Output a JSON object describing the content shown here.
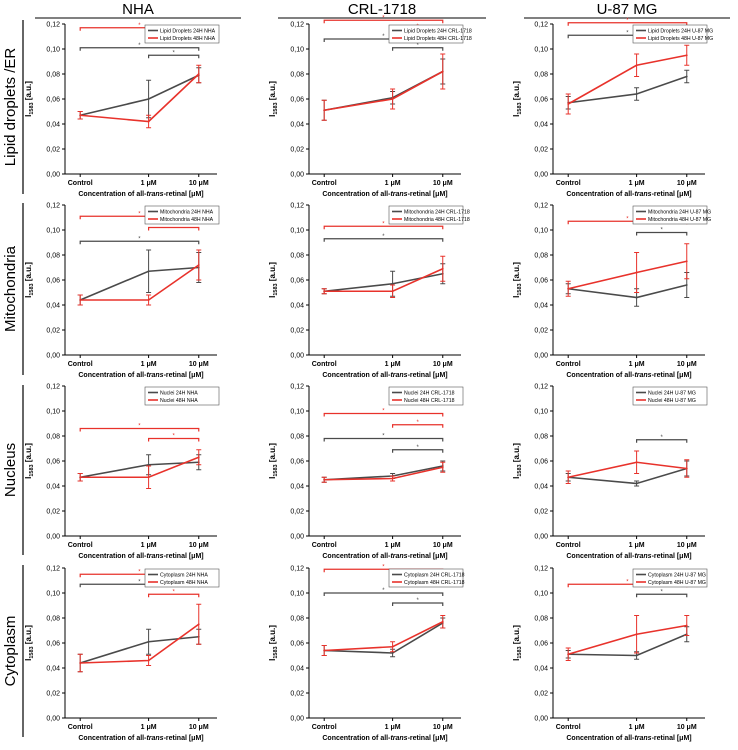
{
  "columns": [
    "NHA",
    "CRL-1718",
    "U-87 MG"
  ],
  "rows": [
    "Lipid droplets /ER",
    "Mitochondria",
    "Nucleus",
    "Cytoplasm"
  ],
  "common": {
    "ylabel_main": "I",
    "ylabel_sub": "1583",
    "ylabel_unit": " [a.u.]",
    "xlabel_pre": "Concentration of all-",
    "xlabel_italic": "trans",
    "xlabel_post": "-retinal [μM]",
    "categories": [
      "Control",
      "1 μM",
      "10 μM"
    ],
    "y_ticks": [
      "0,00",
      "0,02",
      "0,04",
      "0,06",
      "0,08",
      "0,10",
      "0,12"
    ],
    "ylim": [
      0,
      0.12
    ],
    "significance_mark": "*"
  },
  "colors": {
    "h24": "#4a4a4a",
    "h48": "#e8322b"
  },
  "chart_data": [
    {
      "type": "line",
      "row": 0,
      "col": 0,
      "legend": [
        "Lipid Droplets 24H NHA",
        "Lipid Droplets 48H NHA"
      ],
      "series": [
        {
          "name": "24H",
          "values": [
            0.047,
            0.06,
            0.079
          ],
          "err": [
            0.003,
            0.015,
            0.006
          ]
        },
        {
          "name": "48H",
          "values": [
            0.047,
            0.042,
            0.08
          ],
          "err": [
            0.003,
            0.005,
            0.007
          ]
        }
      ],
      "sig": [
        {
          "s": "48H",
          "a": 0,
          "b": 2,
          "y": 0.117
        },
        {
          "s": "48H",
          "a": 1,
          "b": 2,
          "y": 0.111
        },
        {
          "s": "24H",
          "a": 0,
          "b": 2,
          "y": 0.101
        },
        {
          "s": "24H",
          "a": 1,
          "b": 2,
          "y": 0.095
        }
      ]
    },
    {
      "type": "line",
      "row": 0,
      "col": 1,
      "legend": [
        "Lipid Droplets 24H CRL-1718",
        "Lipid Droplets 48H CRL-1718"
      ],
      "series": [
        {
          "name": "24H",
          "values": [
            0.051,
            0.061,
            0.082
          ],
          "err": [
            0.008,
            0.005,
            0.01
          ]
        },
        {
          "name": "48H",
          "values": [
            0.051,
            0.06,
            0.082
          ],
          "err": [
            0.008,
            0.008,
            0.014
          ]
        }
      ],
      "sig": [
        {
          "s": "48H",
          "a": 0,
          "b": 2,
          "y": 0.123
        },
        {
          "s": "48H",
          "a": 1,
          "b": 2,
          "y": 0.116
        },
        {
          "s": "24H",
          "a": 0,
          "b": 2,
          "y": 0.108
        },
        {
          "s": "24H",
          "a": 1,
          "b": 2,
          "y": 0.101
        }
      ]
    },
    {
      "type": "line",
      "row": 0,
      "col": 2,
      "legend": [
        "Lipid Droplets 24H U-87 MG",
        "Lipid Droplets 48H U-87 MG"
      ],
      "series": [
        {
          "name": "24H",
          "values": [
            0.057,
            0.064,
            0.078
          ],
          "err": [
            0.005,
            0.005,
            0.005
          ]
        },
        {
          "name": "48H",
          "values": [
            0.056,
            0.087,
            0.095
          ],
          "err": [
            0.008,
            0.009,
            0.008
          ]
        }
      ],
      "sig": [
        {
          "s": "48H",
          "a": 0,
          "b": 2,
          "y": 0.121
        },
        {
          "s": "24H",
          "a": 0,
          "b": 2,
          "y": 0.111
        }
      ]
    },
    {
      "type": "line",
      "row": 1,
      "col": 0,
      "legend": [
        "Mitochondria 24H NHA",
        "Mitochondria 48H NHA"
      ],
      "series": [
        {
          "name": "24H",
          "values": [
            0.044,
            0.067,
            0.07
          ],
          "err": [
            0.004,
            0.017,
            0.012
          ]
        },
        {
          "name": "48H",
          "values": [
            0.044,
            0.044,
            0.072
          ],
          "err": [
            0.004,
            0.004,
            0.012
          ]
        }
      ],
      "sig": [
        {
          "s": "48H",
          "a": 0,
          "b": 2,
          "y": 0.111
        },
        {
          "s": "48H",
          "a": 1,
          "b": 2,
          "y": 0.102
        },
        {
          "s": "24H",
          "a": 0,
          "b": 2,
          "y": 0.091
        }
      ]
    },
    {
      "type": "line",
      "row": 1,
      "col": 1,
      "legend": [
        "Mitochondria 24H CRL-1718",
        "Mitochondria 48H CRL-1718"
      ],
      "series": [
        {
          "name": "24H",
          "values": [
            0.051,
            0.057,
            0.065
          ],
          "err": [
            0.002,
            0.01,
            0.008
          ]
        },
        {
          "name": "48H",
          "values": [
            0.051,
            0.051,
            0.069
          ],
          "err": [
            0.002,
            0.005,
            0.01
          ]
        }
      ],
      "sig": [
        {
          "s": "48H",
          "a": 0,
          "b": 2,
          "y": 0.103
        },
        {
          "s": "24H",
          "a": 0,
          "b": 2,
          "y": 0.093
        }
      ]
    },
    {
      "type": "line",
      "row": 1,
      "col": 2,
      "legend": [
        "Mitochondria 24H U-87 MG",
        "Mitochondria 48H U-87 MG"
      ],
      "series": [
        {
          "name": "24H",
          "values": [
            0.053,
            0.046,
            0.056
          ],
          "err": [
            0.004,
            0.007,
            0.01
          ]
        },
        {
          "name": "48H",
          "values": [
            0.053,
            0.066,
            0.075
          ],
          "err": [
            0.006,
            0.016,
            0.014
          ]
        }
      ],
      "sig": [
        {
          "s": "48H",
          "a": 0,
          "b": 2,
          "y": 0.107
        },
        {
          "s": "24H",
          "a": 1,
          "b": 2,
          "y": 0.098
        }
      ]
    },
    {
      "type": "line",
      "row": 2,
      "col": 0,
      "legend": [
        "Nuclei 24H NHA",
        "Nuclei 48H NHA"
      ],
      "series": [
        {
          "name": "24H",
          "values": [
            0.047,
            0.057,
            0.059
          ],
          "err": [
            0.003,
            0.008,
            0.006
          ]
        },
        {
          "name": "48H",
          "values": [
            0.047,
            0.047,
            0.063
          ],
          "err": [
            0.003,
            0.009,
            0.006
          ]
        }
      ],
      "sig": [
        {
          "s": "48H",
          "a": 0,
          "b": 2,
          "y": 0.086
        },
        {
          "s": "48H",
          "a": 1,
          "b": 2,
          "y": 0.078
        }
      ]
    },
    {
      "type": "line",
      "row": 2,
      "col": 1,
      "legend": [
        "Nuclei 24H CRL-1718",
        "Nuclei 48H CRL-1718"
      ],
      "series": [
        {
          "name": "24H",
          "values": [
            0.045,
            0.048,
            0.056
          ],
          "err": [
            0.002,
            0.002,
            0.004
          ]
        },
        {
          "name": "48H",
          "values": [
            0.045,
            0.046,
            0.055
          ],
          "err": [
            0.002,
            0.002,
            0.004
          ]
        }
      ],
      "sig": [
        {
          "s": "48H",
          "a": 0,
          "b": 2,
          "y": 0.098
        },
        {
          "s": "48H",
          "a": 1,
          "b": 2,
          "y": 0.089
        },
        {
          "s": "24H",
          "a": 0,
          "b": 2,
          "y": 0.078
        },
        {
          "s": "24H",
          "a": 1,
          "b": 2,
          "y": 0.069
        }
      ]
    },
    {
      "type": "line",
      "row": 2,
      "col": 2,
      "legend": [
        "Nuclei 24H U-87 MG",
        "Nuclei 48H U-87 MG"
      ],
      "series": [
        {
          "name": "24H",
          "values": [
            0.047,
            0.042,
            0.054
          ],
          "err": [
            0.003,
            0.002,
            0.006
          ]
        },
        {
          "name": "48H",
          "values": [
            0.047,
            0.059,
            0.054
          ],
          "err": [
            0.005,
            0.009,
            0.007
          ]
        }
      ],
      "sig": [
        {
          "s": "24H",
          "a": 1,
          "b": 2,
          "y": 0.077
        }
      ]
    },
    {
      "type": "line",
      "row": 3,
      "col": 0,
      "legend": [
        "Cytoplasm 24H NHA",
        "Cytoplasm 48H NHA"
      ],
      "series": [
        {
          "name": "24H",
          "values": [
            0.044,
            0.061,
            0.065
          ],
          "err": [
            0.007,
            0.01,
            0.006
          ]
        },
        {
          "name": "48H",
          "values": [
            0.044,
            0.046,
            0.075
          ],
          "err": [
            0.007,
            0.004,
            0.016
          ]
        }
      ],
      "sig": [
        {
          "s": "48H",
          "a": 0,
          "b": 2,
          "y": 0.115
        },
        {
          "s": "24H",
          "a": 0,
          "b": 2,
          "y": 0.107
        },
        {
          "s": "48H",
          "a": 1,
          "b": 2,
          "y": 0.099
        }
      ]
    },
    {
      "type": "line",
      "row": 3,
      "col": 1,
      "legend": [
        "Cytoplasm 24H CRL-1718",
        "Cytoplasm 48H CRL-1718"
      ],
      "series": [
        {
          "name": "24H",
          "values": [
            0.054,
            0.052,
            0.076
          ],
          "err": [
            0.004,
            0.003,
            0.004
          ]
        },
        {
          "name": "48H",
          "values": [
            0.054,
            0.057,
            0.077
          ],
          "err": [
            0.004,
            0.004,
            0.005
          ]
        }
      ],
      "sig": [
        {
          "s": "48H",
          "a": 0,
          "b": 2,
          "y": 0.119
        },
        {
          "s": "48H",
          "a": 1,
          "b": 2,
          "y": 0.11
        },
        {
          "s": "24H",
          "a": 0,
          "b": 2,
          "y": 0.1
        },
        {
          "s": "24H",
          "a": 1,
          "b": 2,
          "y": 0.092
        }
      ]
    },
    {
      "type": "line",
      "row": 3,
      "col": 2,
      "legend": [
        "Cytoplasm 24H U-87 MG",
        "Cytoplasm 48H U-87 MG"
      ],
      "series": [
        {
          "name": "24H",
          "values": [
            0.051,
            0.05,
            0.067
          ],
          "err": [
            0.003,
            0.003,
            0.006
          ]
        },
        {
          "name": "48H",
          "values": [
            0.051,
            0.067,
            0.074
          ],
          "err": [
            0.005,
            0.015,
            0.008
          ]
        }
      ],
      "sig": [
        {
          "s": "48H",
          "a": 0,
          "b": 2,
          "y": 0.107
        },
        {
          "s": "24H",
          "a": 1,
          "b": 2,
          "y": 0.099
        }
      ]
    }
  ]
}
